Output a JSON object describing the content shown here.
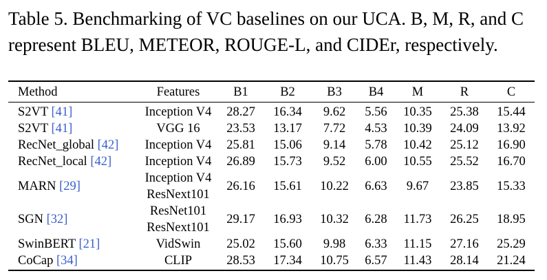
{
  "caption": "Table 5. Benchmarking of VC baselines on our UCA. B, M, R, and C represent BLEU, METEOR, ROUGE-L, and CIDEr, respectively.",
  "table": {
    "headers": [
      "Method",
      "Features",
      "B1",
      "B2",
      "B3",
      "B4",
      "M",
      "R",
      "C"
    ],
    "rows": [
      {
        "method": "S2VT",
        "cite": "[41]",
        "features": [
          "Inception V4"
        ],
        "values": [
          "28.27",
          "16.34",
          "9.62",
          "5.56",
          "10.35",
          "25.38",
          "15.44"
        ]
      },
      {
        "method": "S2VT",
        "cite": "[41]",
        "features": [
          "VGG 16"
        ],
        "values": [
          "23.53",
          "13.17",
          "7.72",
          "4.53",
          "10.39",
          "24.09",
          "13.92"
        ]
      },
      {
        "method": "RecNet_global",
        "cite": "[42]",
        "features": [
          "Inception V4"
        ],
        "values": [
          "25.81",
          "15.06",
          "9.14",
          "5.78",
          "10.42",
          "25.12",
          "16.90"
        ]
      },
      {
        "method": "RecNet_local",
        "cite": "[42]",
        "features": [
          "Inception V4"
        ],
        "values": [
          "26.89",
          "15.73",
          "9.52",
          "6.00",
          "10.55",
          "25.52",
          "16.70"
        ]
      },
      {
        "method": "MARN",
        "cite": "[29]",
        "features": [
          "Inception V4",
          "ResNext101"
        ],
        "values": [
          "26.16",
          "15.61",
          "10.22",
          "6.63",
          "9.67",
          "23.85",
          "15.33"
        ]
      },
      {
        "method": "SGN",
        "cite": "[32]",
        "features": [
          "ResNet101",
          "ResNext101"
        ],
        "values": [
          "29.17",
          "16.93",
          "10.32",
          "6.28",
          "11.73",
          "26.25",
          "18.95"
        ]
      },
      {
        "method": "SwinBERT",
        "cite": "[21]",
        "features": [
          "VidSwin"
        ],
        "values": [
          "25.02",
          "15.60",
          "9.98",
          "6.33",
          "11.15",
          "27.16",
          "25.29"
        ]
      },
      {
        "method": "CoCap",
        "cite": "[34]",
        "features": [
          "CLIP"
        ],
        "values": [
          "28.53",
          "17.34",
          "10.75",
          "6.57",
          "11.43",
          "28.14",
          "21.24"
        ]
      }
    ]
  },
  "colors": {
    "citation": "#3a5fcd",
    "text": "#000000"
  }
}
